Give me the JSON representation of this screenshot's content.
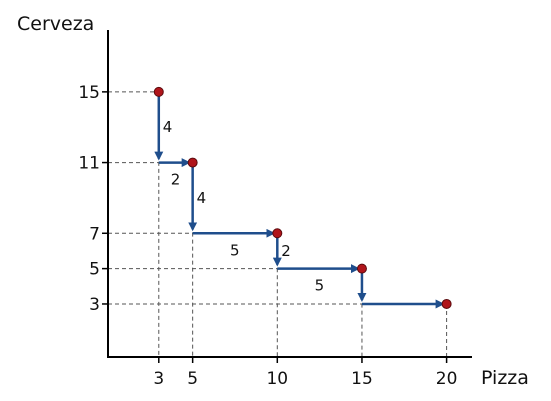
{
  "chart_data": {
    "type": "line",
    "xlabel": "Pizza",
    "ylabel": "Cerveza",
    "xticks": [
      "3",
      "5",
      "10",
      "15",
      "20"
    ],
    "yticks": [
      "15",
      "11",
      "7",
      "5",
      "3"
    ],
    "xlim": [
      0,
      21.5
    ],
    "ylim": [
      0,
      18.5
    ],
    "series": [
      {
        "x": [
          3,
          5,
          10,
          15,
          20
        ],
        "y": [
          15,
          11,
          7,
          5,
          3
        ]
      }
    ],
    "steps": [
      {
        "from": [
          3,
          15
        ],
        "to": [
          3,
          11
        ],
        "direction": "down",
        "label": "4"
      },
      {
        "from": [
          3,
          11
        ],
        "to": [
          5,
          11
        ],
        "direction": "right",
        "label": "2"
      },
      {
        "from": [
          5,
          11
        ],
        "to": [
          5,
          7
        ],
        "direction": "down",
        "label": "4"
      },
      {
        "from": [
          5,
          7
        ],
        "to": [
          10,
          7
        ],
        "direction": "right",
        "label": "5"
      },
      {
        "from": [
          10,
          7
        ],
        "to": [
          10,
          5
        ],
        "direction": "down",
        "label": "2"
      },
      {
        "from": [
          10,
          5
        ],
        "to": [
          15,
          5
        ],
        "direction": "right",
        "label": "5"
      },
      {
        "from": [
          15,
          5
        ],
        "to": [
          15,
          3
        ],
        "direction": "down",
        "label": ""
      },
      {
        "from": [
          15,
          3
        ],
        "to": [
          20,
          3
        ],
        "direction": "right",
        "label": ""
      }
    ],
    "grid": false,
    "guide_lines": "dashed",
    "colors": {
      "arrow": "#1f4e8c",
      "point": "#b0151b",
      "guide": "#555555"
    }
  }
}
